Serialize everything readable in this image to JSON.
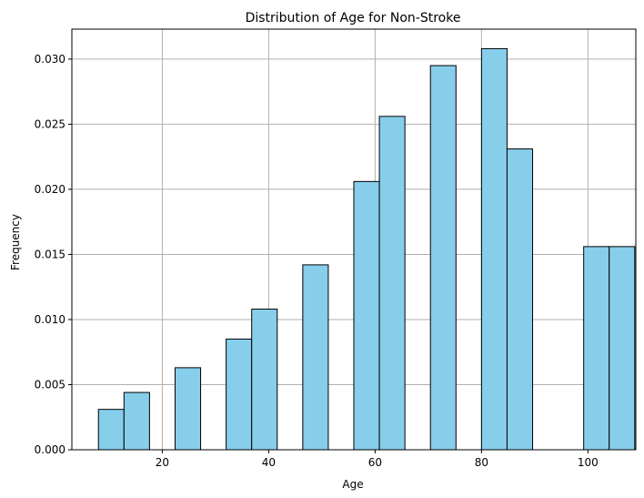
{
  "chart_data": {
    "type": "bar",
    "title": "Distribution of Age for Non-Stroke",
    "xlabel": "Age",
    "ylabel": "Frequency",
    "xlim": [
      3,
      109
    ],
    "ylim": [
      0,
      0.0323
    ],
    "xticks": [
      20,
      40,
      60,
      80,
      100
    ],
    "yticks": [
      0.0,
      0.005,
      0.01,
      0.015,
      0.02,
      0.025,
      0.03
    ],
    "ytick_labels": [
      "0.000",
      "0.005",
      "0.010",
      "0.015",
      "0.020",
      "0.025",
      "0.030"
    ],
    "grid": true,
    "bins": [
      {
        "x0": 8,
        "x1": 12.8,
        "value": 0.0031
      },
      {
        "x0": 12.8,
        "x1": 17.6,
        "value": 0.0044
      },
      {
        "x0": 22.4,
        "x1": 27.2,
        "value": 0.0063
      },
      {
        "x0": 32,
        "x1": 36.8,
        "value": 0.0085
      },
      {
        "x0": 36.8,
        "x1": 41.6,
        "value": 0.0108
      },
      {
        "x0": 46.4,
        "x1": 51.2,
        "value": 0.0142
      },
      {
        "x0": 56,
        "x1": 60.8,
        "value": 0.0206
      },
      {
        "x0": 60.8,
        "x1": 65.6,
        "value": 0.0256
      },
      {
        "x0": 70.4,
        "x1": 75.2,
        "value": 0.0295
      },
      {
        "x0": 80,
        "x1": 84.8,
        "value": 0.0308
      },
      {
        "x0": 84.8,
        "x1": 89.6,
        "value": 0.0231
      },
      {
        "x0": 99.2,
        "x1": 104,
        "value": 0.0156
      },
      {
        "x0": 104,
        "x1": 108.8,
        "value": 0.0156
      }
    ],
    "colors": {
      "bar_fill": "#87ceeb",
      "bar_edge": "#000000",
      "grid": "#b0b0b0"
    }
  }
}
